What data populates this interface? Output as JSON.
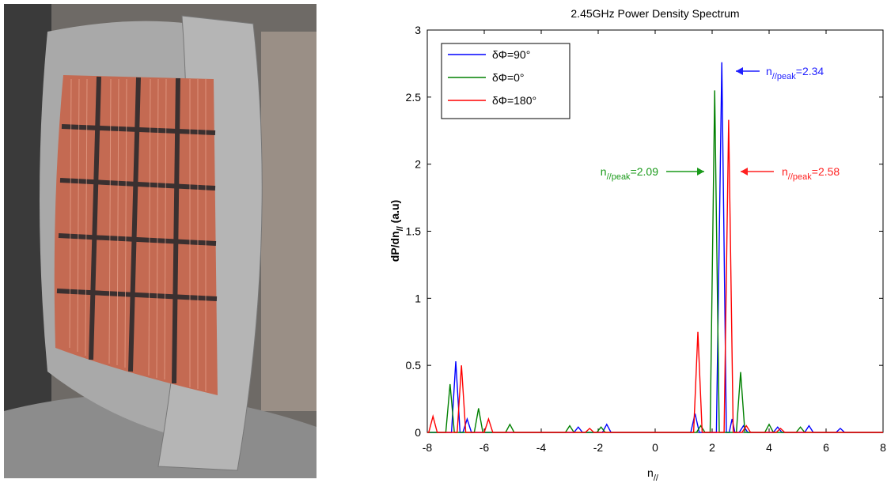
{
  "chart_data": {
    "type": "line",
    "title": "2.45GHz Power Density Spectrum",
    "xlabel": {
      "base": "n",
      "sub": "//"
    },
    "ylabel": {
      "base": "dP/dn",
      "sub": "//",
      "rest": "  (a.u)"
    },
    "xlim": [
      -8,
      8
    ],
    "xticks": [
      -8,
      -6,
      -4,
      -2,
      0,
      2,
      4,
      6,
      8
    ],
    "ylim": [
      0,
      3
    ],
    "yticks": [
      0,
      0.5,
      1,
      1.5,
      2,
      2.5,
      3
    ],
    "legend": "upper left",
    "series": [
      {
        "name": "δΦ=90°",
        "color": "#0000ff",
        "x": [
          -8,
          -7.15,
          -7,
          -6.85,
          -6.75,
          -6.6,
          -6.45,
          -2.85,
          -2.7,
          -2.55,
          -1.85,
          -1.7,
          -1.55,
          1.25,
          1.4,
          1.55,
          2.15,
          2.34,
          2.5,
          2.6,
          2.7,
          2.8,
          2.95,
          3.1,
          3.25,
          4.15,
          4.3,
          4.45,
          5.25,
          5.4,
          5.55,
          6.35,
          6.5,
          6.65,
          8
        ],
        "values": [
          0,
          0,
          0.53,
          0,
          0,
          0.1,
          0,
          0,
          0.04,
          0,
          0,
          0.06,
          0,
          0,
          0.14,
          0,
          0,
          2.76,
          0,
          0,
          0.1,
          0,
          0,
          0.05,
          0,
          0,
          0.04,
          0,
          0,
          0.05,
          0,
          0,
          0.03,
          0,
          0
        ]
      },
      {
        "name": "δΦ=0°",
        "color": "#008000",
        "x": [
          -8,
          -7.35,
          -7.2,
          -7.05,
          -6.35,
          -6.2,
          -6.05,
          -5.25,
          -5.1,
          -4.95,
          -3.15,
          -3,
          -2.85,
          -2.05,
          -1.9,
          -1.75,
          1.45,
          1.6,
          1.75,
          1.93,
          2.09,
          2.25,
          2.85,
          3.0,
          3.15,
          3.85,
          4.0,
          4.15,
          4.95,
          5.1,
          5.25,
          8
        ],
        "values": [
          0,
          0,
          0.36,
          0,
          0,
          0.18,
          0,
          0,
          0.06,
          0,
          0,
          0.05,
          0,
          0,
          0.04,
          0,
          0,
          0.05,
          0,
          0,
          2.55,
          0,
          0,
          0.45,
          0,
          0,
          0.06,
          0,
          0,
          0.04,
          0,
          0
        ]
      },
      {
        "name": "δΦ=180°",
        "color": "#ff0000",
        "x": [
          -8,
          -7.95,
          -7.8,
          -7.65,
          -6.95,
          -6.8,
          -6.65,
          -6.0,
          -5.85,
          -5.7,
          -2.45,
          -2.3,
          -2.15,
          1.35,
          1.5,
          1.65,
          2.42,
          2.58,
          2.74,
          3.05,
          3.2,
          3.35,
          4.25,
          4.4,
          4.55,
          8
        ],
        "values": [
          0,
          0,
          0.12,
          0,
          0,
          0.5,
          0,
          0,
          0.1,
          0,
          0,
          0.03,
          0,
          0,
          0.75,
          0,
          0,
          2.33,
          0,
          0,
          0.05,
          0,
          0,
          0.03,
          0,
          0
        ]
      }
    ],
    "annotations": [
      {
        "base": "n",
        "sub": "//peak",
        "rest": "=2.34",
        "color": "#1f1fff"
      },
      {
        "base": "n",
        "sub": "//peak",
        "rest": "=2.09",
        "color": "#1a9a1a"
      },
      {
        "base": "n",
        "sub": "//peak",
        "rest": "=2.58",
        "color": "#ff2020"
      }
    ]
  }
}
